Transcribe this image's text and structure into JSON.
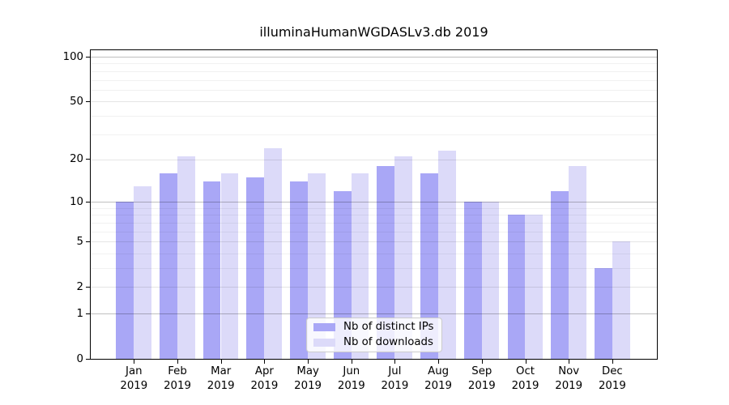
{
  "title": "illuminaHumanWGDASLv3.db 2019",
  "chart_data": {
    "type": "bar",
    "title": "illuminaHumanWGDASLv3.db 2019",
    "categories": [
      "Jan 2019",
      "Feb 2019",
      "Mar 2019",
      "Apr 2019",
      "May 2019",
      "Jun 2019",
      "Jul 2019",
      "Aug 2019",
      "Sep 2019",
      "Oct 2019",
      "Nov 2019",
      "Dec 2019"
    ],
    "series": [
      {
        "name": "Nb of distinct IPs",
        "color": "#a9a7f6",
        "values": [
          10,
          16,
          14,
          15,
          14,
          12,
          18,
          16,
          10,
          8,
          12,
          3
        ]
      },
      {
        "name": "Nb of downloads",
        "color": "#dcdaf9",
        "values": [
          13,
          21,
          16,
          24,
          16,
          16,
          21,
          23,
          10,
          8,
          18,
          5
        ]
      }
    ],
    "ylabel": "",
    "xlabel": "",
    "yscale": "log1p",
    "ylim": [
      0,
      100
    ],
    "yticks": [
      0,
      1,
      2,
      5,
      10,
      20,
      50,
      100
    ],
    "mid_gridlines": [
      2,
      5,
      20,
      50
    ],
    "major_gridlines": [
      1,
      10,
      100
    ],
    "minor_gridlines": [
      3,
      4,
      6,
      7,
      8,
      9,
      30,
      40,
      60,
      70,
      80,
      90
    ],
    "grid": true,
    "legend_position": "lower center inside plot"
  }
}
